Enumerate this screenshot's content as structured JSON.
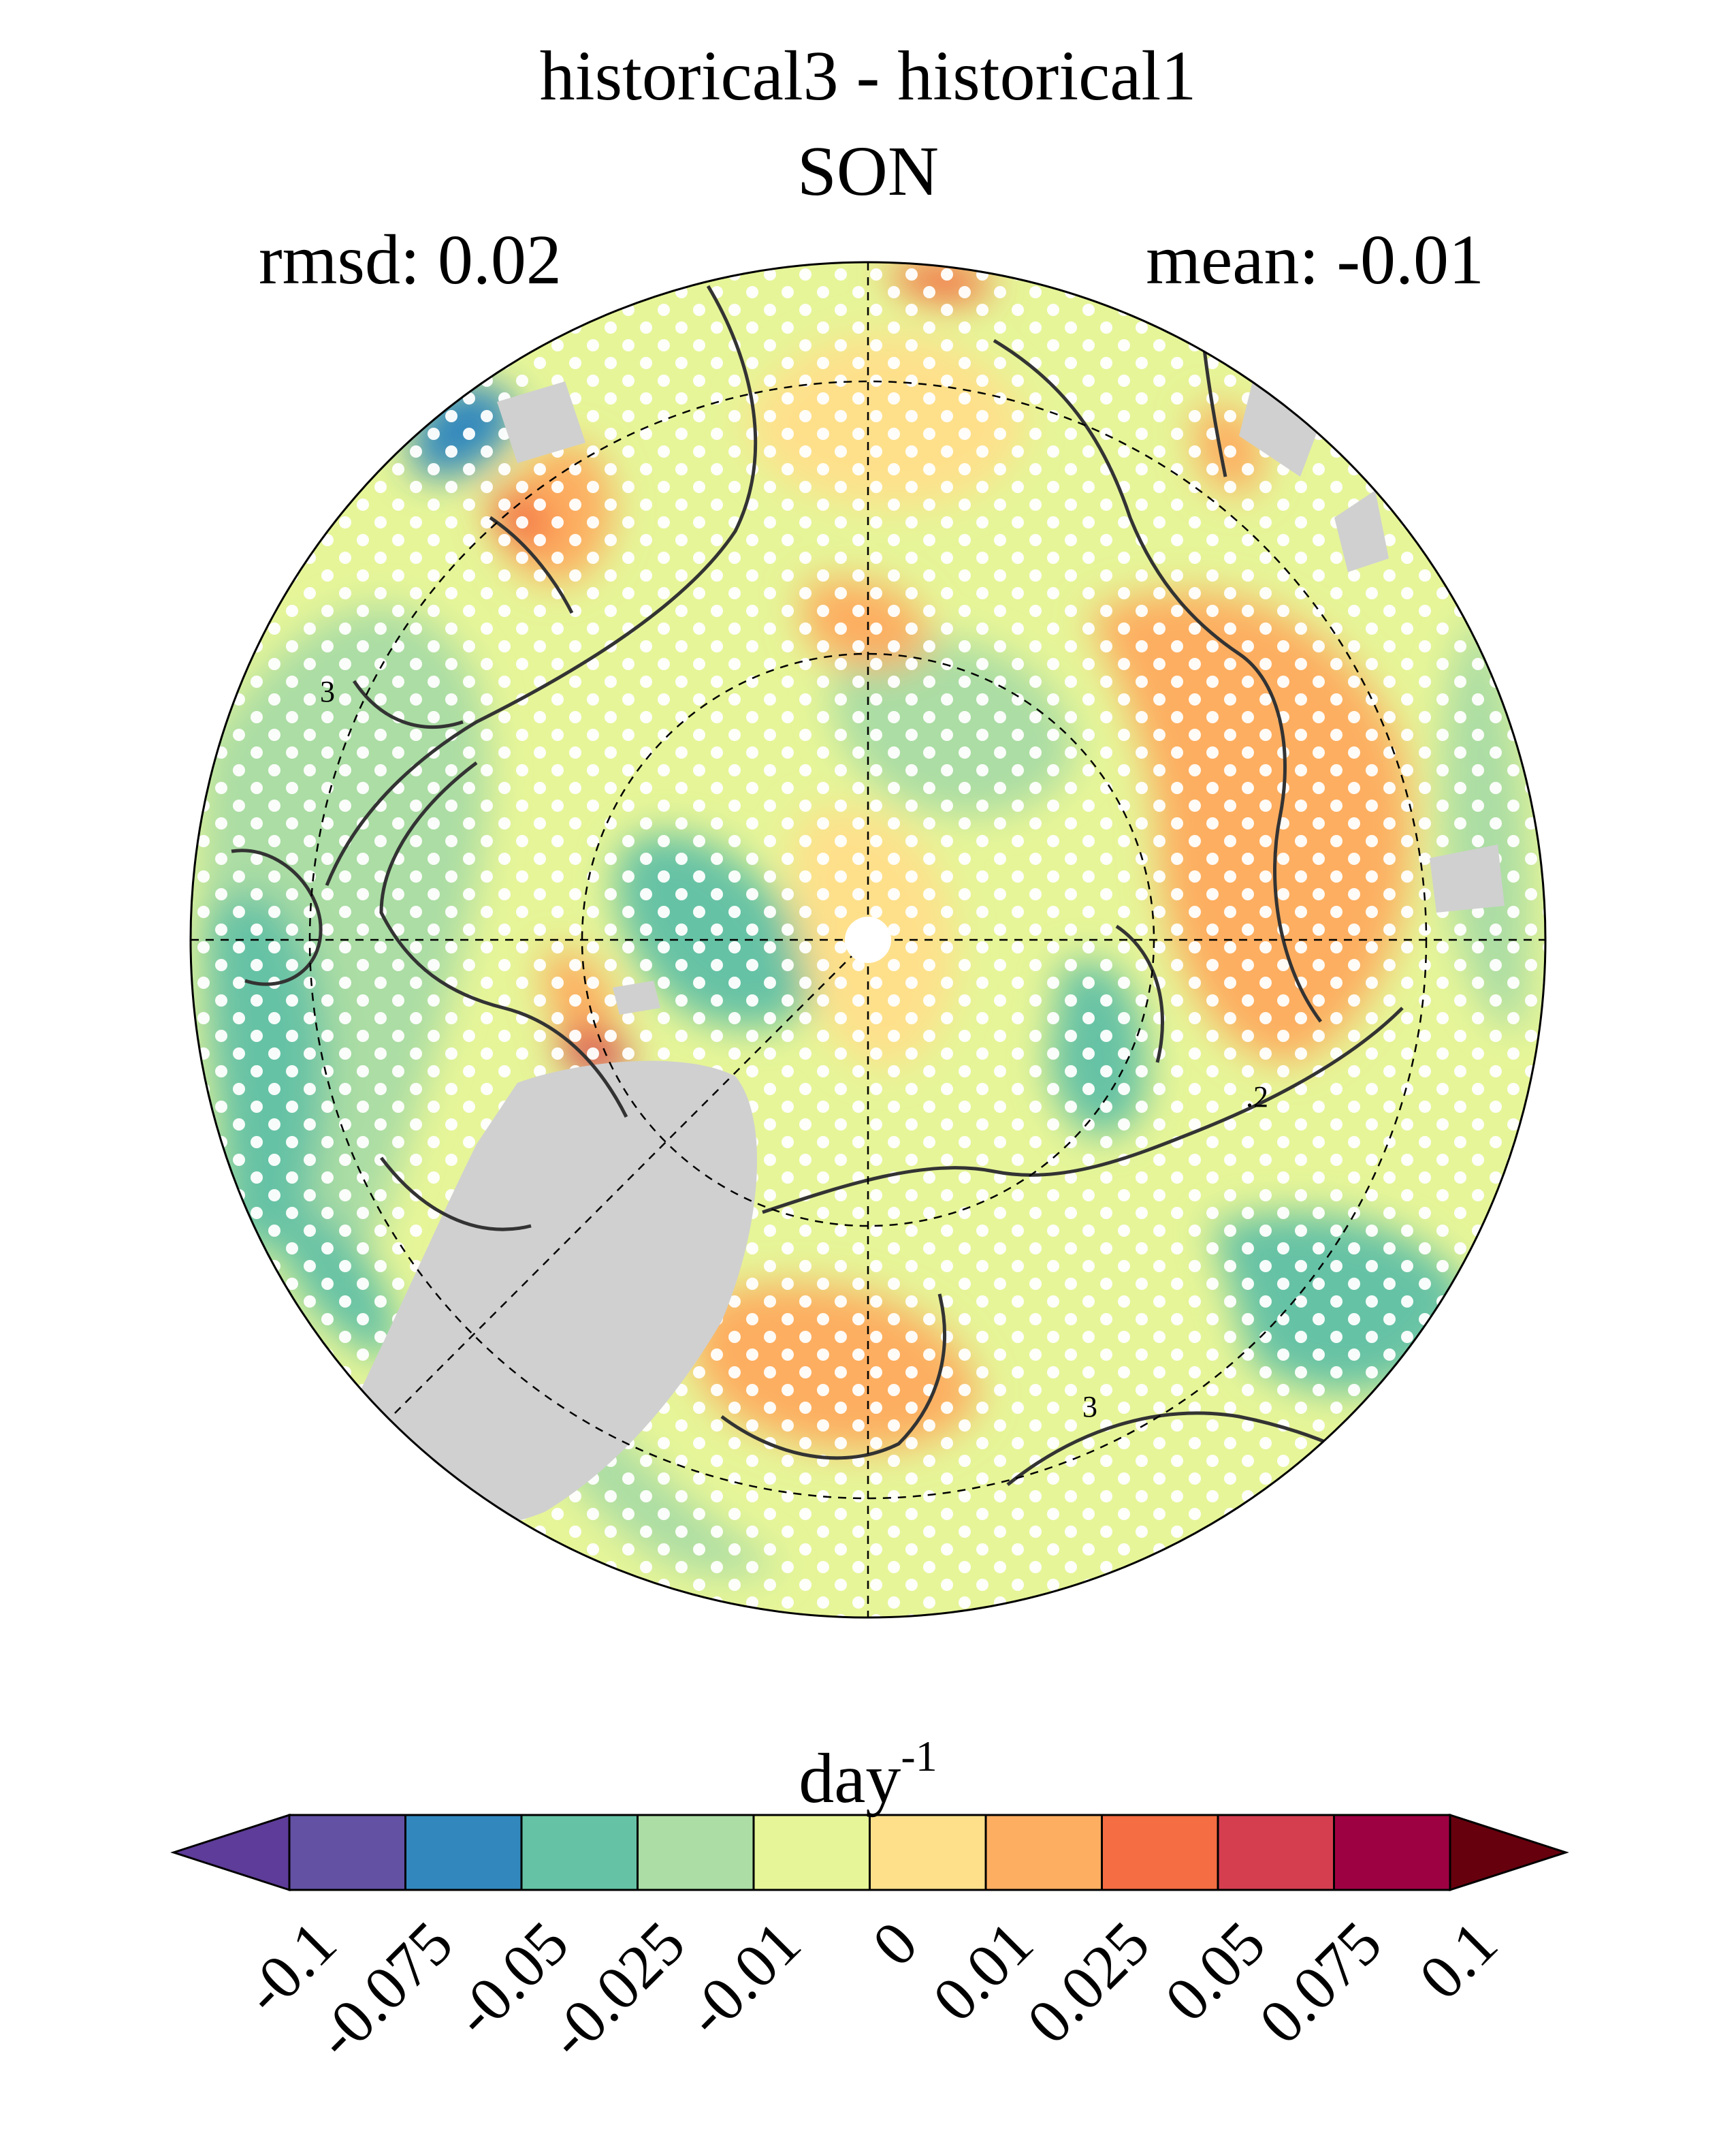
{
  "title": "historical3 - historical1",
  "subtitle": "SON",
  "stats": {
    "rmsd": "rmsd: 0.02",
    "mean": "mean: -0.01"
  },
  "colorbar": {
    "units_base": "day",
    "units_exp": "-1",
    "levels": [
      "-0.1",
      "-0.075",
      "-0.05",
      "-0.025",
      "-0.01",
      "0",
      "0.01",
      "0.025",
      "0.05",
      "0.075",
      "0.1"
    ],
    "colors": [
      "#5e3c99",
      "#6351a3",
      "#3288bd",
      "#66c2a5",
      "#abdda4",
      "#e6f598",
      "#fee08b",
      "#fdae61",
      "#f46d43",
      "#d53e4f",
      "#9e0142",
      "#67000d"
    ],
    "extend": "both"
  },
  "map": {
    "projection": "north polar stereographic",
    "land_mask_color": "#d0d0d0",
    "contour_labels": [
      "3",
      ".2",
      "3"
    ],
    "stippling": "white dots mark significant differences",
    "dominant_color": "#e6f598"
  }
}
